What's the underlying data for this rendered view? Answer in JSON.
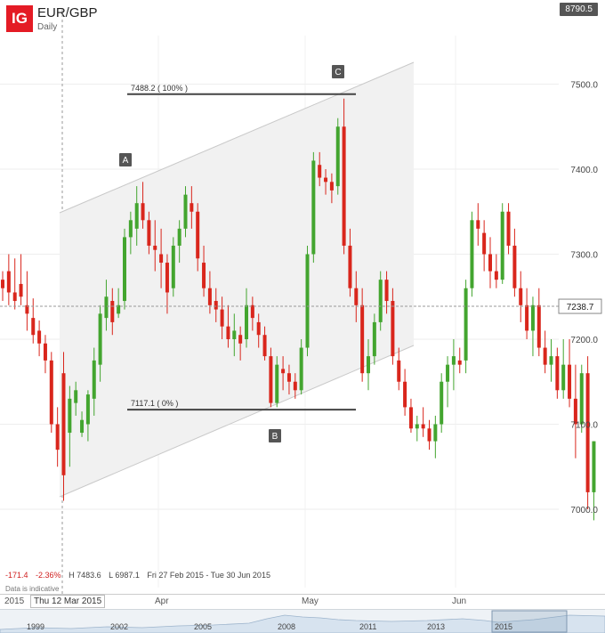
{
  "header": {
    "logo": "IG",
    "instrument": "EUR/GBP",
    "interval": "Daily",
    "top_value": "8790.5"
  },
  "colors": {
    "up": "#43a52f",
    "down": "#d9261c",
    "channel_fill": "#f1f1f1",
    "channel_line": "#c9c9c9",
    "accent": "#e41b25"
  },
  "stats": {
    "change": "-171.4",
    "change_pct": "-2.36%",
    "high": "H 7483.6",
    "low": "L 6987.1",
    "range": "Fri 27 Feb 2015 - Tue 30 Jun 2015"
  },
  "note": "Data is indicative",
  "x_axis": {
    "year_start": "2015",
    "cursor_date": "Thu 12 Mar 2015",
    "months": [
      "Apr",
      "May",
      "Jun"
    ]
  },
  "navigator_years": [
    "1999",
    "2002",
    "2005",
    "2008",
    "2011",
    "2013",
    "2015"
  ],
  "chart_data": {
    "type": "candlestick",
    "title": "EUR/GBP",
    "interval": "Daily",
    "y_ticks": [
      7000.0,
      7100.0,
      7200.0,
      7300.0,
      7400.0,
      7500.0
    ],
    "ylim": [
      6955,
      7555
    ],
    "current_price": 7238.7,
    "fib_levels": [
      {
        "label": "7488.2 ( 100% )",
        "value": 7488.2
      },
      {
        "label": "7117.1 ( 0% )",
        "value": 7117.1
      }
    ],
    "point_labels": [
      {
        "label": "A",
        "value": 7320
      },
      {
        "label": "B",
        "value": 7050
      },
      {
        "label": "C",
        "value": 7520
      }
    ],
    "candles": [
      [
        7270,
        7280,
        7245,
        7260
      ],
      [
        7280,
        7300,
        7240,
        7255
      ],
      [
        7255,
        7295,
        7235,
        7245
      ],
      [
        7265,
        7300,
        7240,
        7250
      ],
      [
        7240,
        7280,
        7210,
        7230
      ],
      [
        7225,
        7248,
        7195,
        7205
      ],
      [
        7210,
        7222,
        7180,
        7195
      ],
      [
        7195,
        7205,
        7160,
        7175
      ],
      [
        7175,
        7185,
        7090,
        7100
      ],
      [
        7100,
        7120,
        7050,
        7070
      ],
      [
        7160,
        7185,
        7010,
        7040
      ],
      [
        7090,
        7145,
        7050,
        7130
      ],
      [
        7125,
        7150,
        7110,
        7140
      ],
      [
        7090,
        7115,
        7085,
        7105
      ],
      [
        7100,
        7140,
        7080,
        7135
      ],
      [
        7130,
        7190,
        7110,
        7175
      ],
      [
        7170,
        7240,
        7150,
        7230
      ],
      [
        7225,
        7270,
        7210,
        7250
      ],
      [
        7245,
        7260,
        7205,
        7220
      ],
      [
        7230,
        7260,
        7225,
        7240
      ],
      [
        7245,
        7330,
        7235,
        7320
      ],
      [
        7320,
        7350,
        7300,
        7340
      ],
      [
        7330,
        7380,
        7310,
        7360
      ],
      [
        7360,
        7385,
        7330,
        7340
      ],
      [
        7340,
        7350,
        7300,
        7310
      ],
      [
        7310,
        7340,
        7280,
        7305
      ],
      [
        7300,
        7330,
        7260,
        7290
      ],
      [
        7290,
        7300,
        7230,
        7255
      ],
      [
        7260,
        7320,
        7250,
        7310
      ],
      [
        7310,
        7340,
        7290,
        7330
      ],
      [
        7330,
        7380,
        7320,
        7370
      ],
      [
        7360,
        7380,
        7330,
        7350
      ],
      [
        7350,
        7360,
        7280,
        7295
      ],
      [
        7290,
        7310,
        7250,
        7260
      ],
      [
        7260,
        7280,
        7230,
        7240
      ],
      [
        7245,
        7260,
        7220,
        7235
      ],
      [
        7235,
        7250,
        7200,
        7215
      ],
      [
        7215,
        7240,
        7190,
        7200
      ],
      [
        7200,
        7230,
        7180,
        7210
      ],
      [
        7205,
        7215,
        7175,
        7195
      ],
      [
        7200,
        7260,
        7190,
        7240
      ],
      [
        7240,
        7250,
        7210,
        7225
      ],
      [
        7220,
        7230,
        7190,
        7205
      ],
      [
        7205,
        7215,
        7175,
        7180
      ],
      [
        7180,
        7190,
        7120,
        7125
      ],
      [
        7125,
        7180,
        7120,
        7170
      ],
      [
        7165,
        7180,
        7140,
        7160
      ],
      [
        7160,
        7170,
        7135,
        7150
      ],
      [
        7150,
        7160,
        7130,
        7140
      ],
      [
        7140,
        7200,
        7135,
        7190
      ],
      [
        7190,
        7310,
        7180,
        7300
      ],
      [
        7300,
        7420,
        7290,
        7410
      ],
      [
        7405,
        7420,
        7380,
        7390
      ],
      [
        7390,
        7400,
        7370,
        7385
      ],
      [
        7385,
        7395,
        7360,
        7375
      ],
      [
        7380,
        7460,
        7370,
        7450
      ],
      [
        7450,
        7483,
        7300,
        7310
      ],
      [
        7310,
        7330,
        7250,
        7260
      ],
      [
        7260,
        7280,
        7220,
        7240
      ],
      [
        7240,
        7260,
        7150,
        7160
      ],
      [
        7160,
        7200,
        7140,
        7180
      ],
      [
        7180,
        7230,
        7170,
        7220
      ],
      [
        7220,
        7280,
        7210,
        7270
      ],
      [
        7270,
        7280,
        7230,
        7245
      ],
      [
        7245,
        7260,
        7170,
        7180
      ],
      [
        7175,
        7190,
        7140,
        7150
      ],
      [
        7150,
        7165,
        7110,
        7120
      ],
      [
        7120,
        7130,
        7090,
        7095
      ],
      [
        7095,
        7110,
        7080,
        7100
      ],
      [
        7100,
        7120,
        7085,
        7095
      ],
      [
        7095,
        7105,
        7070,
        7080
      ],
      [
        7080,
        7110,
        7060,
        7100
      ],
      [
        7100,
        7160,
        7090,
        7150
      ],
      [
        7150,
        7180,
        7120,
        7170
      ],
      [
        7170,
        7200,
        7140,
        7180
      ],
      [
        7175,
        7190,
        7160,
        7170
      ],
      [
        7175,
        7270,
        7160,
        7260
      ],
      [
        7260,
        7350,
        7250,
        7340
      ],
      [
        7340,
        7360,
        7310,
        7330
      ],
      [
        7325,
        7340,
        7280,
        7300
      ],
      [
        7300,
        7320,
        7260,
        7280
      ],
      [
        7280,
        7300,
        7260,
        7270
      ],
      [
        7270,
        7360,
        7265,
        7350
      ],
      [
        7350,
        7360,
        7300,
        7310
      ],
      [
        7310,
        7330,
        7250,
        7260
      ],
      [
        7260,
        7280,
        7220,
        7240
      ],
      [
        7240,
        7260,
        7200,
        7210
      ],
      [
        7210,
        7250,
        7180,
        7240
      ],
      [
        7240,
        7260,
        7180,
        7190
      ],
      [
        7190,
        7210,
        7160,
        7170
      ],
      [
        7170,
        7200,
        7150,
        7180
      ],
      [
        7180,
        7190,
        7130,
        7140
      ],
      [
        7140,
        7200,
        7130,
        7170
      ],
      [
        7170,
        7200,
        7120,
        7130
      ],
      [
        7130,
        7170,
        7060,
        7100
      ],
      [
        7100,
        7170,
        7090,
        7160
      ],
      [
        7160,
        7180,
        7000,
        7020
      ],
      [
        7020,
        7080,
        6987,
        7080
      ]
    ]
  }
}
